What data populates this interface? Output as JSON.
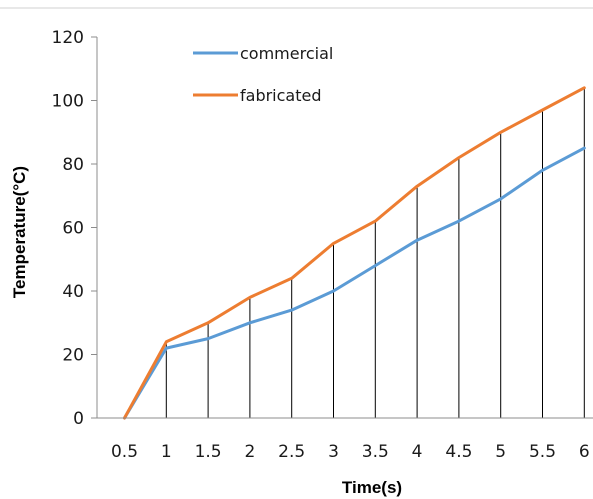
{
  "chart_data": {
    "type": "line",
    "title": "",
    "xlabel": "Time(s)",
    "ylabel": "Temperature(°C)",
    "x": [
      0.5,
      1,
      1.5,
      2,
      2.5,
      3,
      3.5,
      4,
      4.5,
      5,
      5.5,
      6
    ],
    "x_tick_labels": [
      "0.5",
      "1",
      "1.5",
      "2",
      "2.5",
      "3",
      "3.5",
      "4",
      "4.5",
      "5",
      "5.5",
      "6"
    ],
    "ylim": [
      0,
      120
    ],
    "y_ticks": [
      0,
      20,
      40,
      60,
      80,
      100,
      120
    ],
    "y_tick_labels": [
      "0",
      "20",
      "40",
      "60",
      "80",
      "100",
      "120"
    ],
    "grid": false,
    "drop_lines": true,
    "legend_position": "top-center",
    "series": [
      {
        "name": "commercial",
        "color": "#5B9BD5",
        "values": [
          0,
          22,
          25,
          30,
          34,
          40,
          48,
          56,
          62,
          69,
          78,
          85
        ]
      },
      {
        "name": "fabricated",
        "color": "#ED7D31",
        "values": [
          0,
          24,
          30,
          38,
          44,
          55,
          62,
          73,
          82,
          90,
          97,
          104
        ]
      }
    ]
  }
}
